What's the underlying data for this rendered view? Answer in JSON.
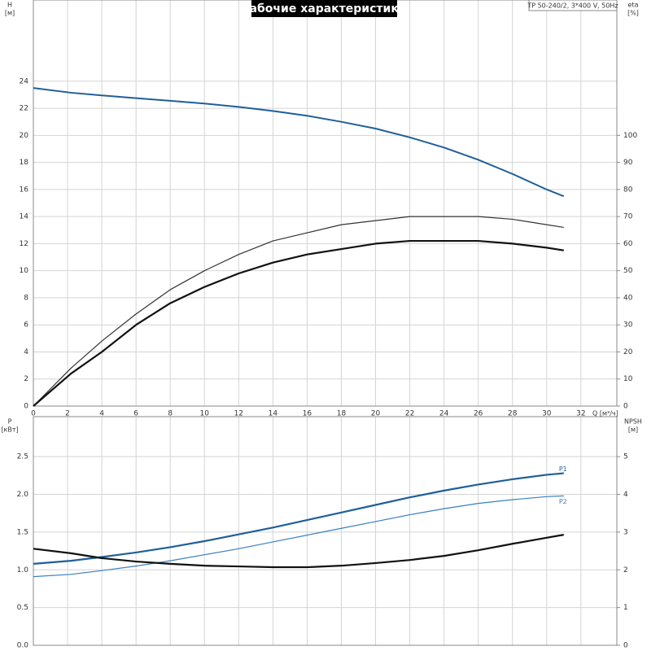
{
  "chart_data": [
    {
      "type": "line",
      "title": "Рабочие характеристики",
      "note": "TP 50-240/2, 3*400 V, 50Hz",
      "xlabel": "Q [м³/ч]",
      "ylabel": [
        "H",
        "[м]"
      ],
      "y2label": [
        "eta",
        "[%]"
      ],
      "x": [
        0,
        2.2,
        4,
        6,
        8,
        10,
        12,
        14,
        16,
        18,
        20,
        22,
        24,
        26,
        28,
        30,
        31
      ],
      "xlim": [
        0,
        34.1
      ],
      "xticks": [
        0,
        2,
        4,
        6,
        8,
        10,
        12,
        14,
        16,
        18,
        20,
        22,
        24,
        26,
        28,
        30,
        32
      ],
      "ylim": [
        0,
        30
      ],
      "yticks": [
        0,
        2,
        4,
        6,
        8,
        10,
        12,
        14,
        16,
        18,
        20,
        22,
        24
      ],
      "y2lim": [
        0,
        150
      ],
      "y2ticks": [
        0,
        10,
        20,
        30,
        40,
        50,
        60,
        70,
        80,
        90,
        100
      ],
      "grid": true,
      "series": [
        {
          "color": "#1f5f9a",
          "values": [
            23.5,
            23.15,
            22.95,
            22.75,
            22.55,
            22.35,
            22.1,
            21.8,
            21.45,
            21.0,
            20.5,
            19.85,
            19.1,
            18.2,
            17.15,
            16.0,
            15.5
          ]
        },
        {
          "color": "#333333",
          "axis": "y2",
          "values": [
            0,
            14,
            24,
            34,
            43,
            50,
            56,
            61,
            64,
            67,
            68.5,
            70,
            70,
            70,
            69,
            67,
            66
          ]
        },
        {
          "color": "#111111",
          "axis": "y2",
          "values": [
            0,
            12,
            20,
            30,
            38,
            44,
            49,
            53,
            56,
            58,
            60,
            61,
            61,
            61,
            60,
            58.5,
            57.5
          ]
        }
      ]
    },
    {
      "type": "line",
      "ylabel": [
        "P",
        "[кВт]"
      ],
      "y2label": [
        "NPSH",
        "[м]"
      ],
      "x": [
        0,
        2.2,
        4,
        6,
        8,
        10,
        12,
        14,
        16,
        18,
        20,
        22,
        24,
        26,
        28,
        30,
        31
      ],
      "xlim": [
        0,
        34.1
      ],
      "ylim": [
        0,
        3.03
      ],
      "yticks": [
        {
          "value": 0,
          "label": "0.0"
        },
        0.5,
        {
          "value": 1,
          "label": "1.0"
        },
        1.5,
        {
          "value": 2,
          "label": "2.0"
        },
        2.5
      ],
      "y2lim": [
        0,
        6.06
      ],
      "y2ticks": [
        0,
        1,
        2,
        3,
        4,
        5
      ],
      "grid": true,
      "series": [
        {
          "name": "P1",
          "color": "#1f5f9a",
          "values": [
            1.08,
            1.12,
            1.17,
            1.23,
            1.3,
            1.38,
            1.47,
            1.56,
            1.66,
            1.76,
            1.86,
            1.96,
            2.05,
            2.13,
            2.2,
            2.26,
            2.28
          ]
        },
        {
          "name": "P2",
          "color": "#3a7fc1",
          "values": [
            0.91,
            0.94,
            0.99,
            1.05,
            1.12,
            1.2,
            1.28,
            1.37,
            1.46,
            1.55,
            1.64,
            1.73,
            1.81,
            1.88,
            1.93,
            1.97,
            1.98
          ]
        },
        {
          "color": "#111111",
          "axis": "y2",
          "values": [
            2.56,
            2.44,
            2.31,
            2.22,
            2.16,
            2.11,
            2.09,
            2.07,
            2.07,
            2.11,
            2.18,
            2.26,
            2.37,
            2.52,
            2.69,
            2.85,
            2.93
          ]
        }
      ]
    }
  ]
}
